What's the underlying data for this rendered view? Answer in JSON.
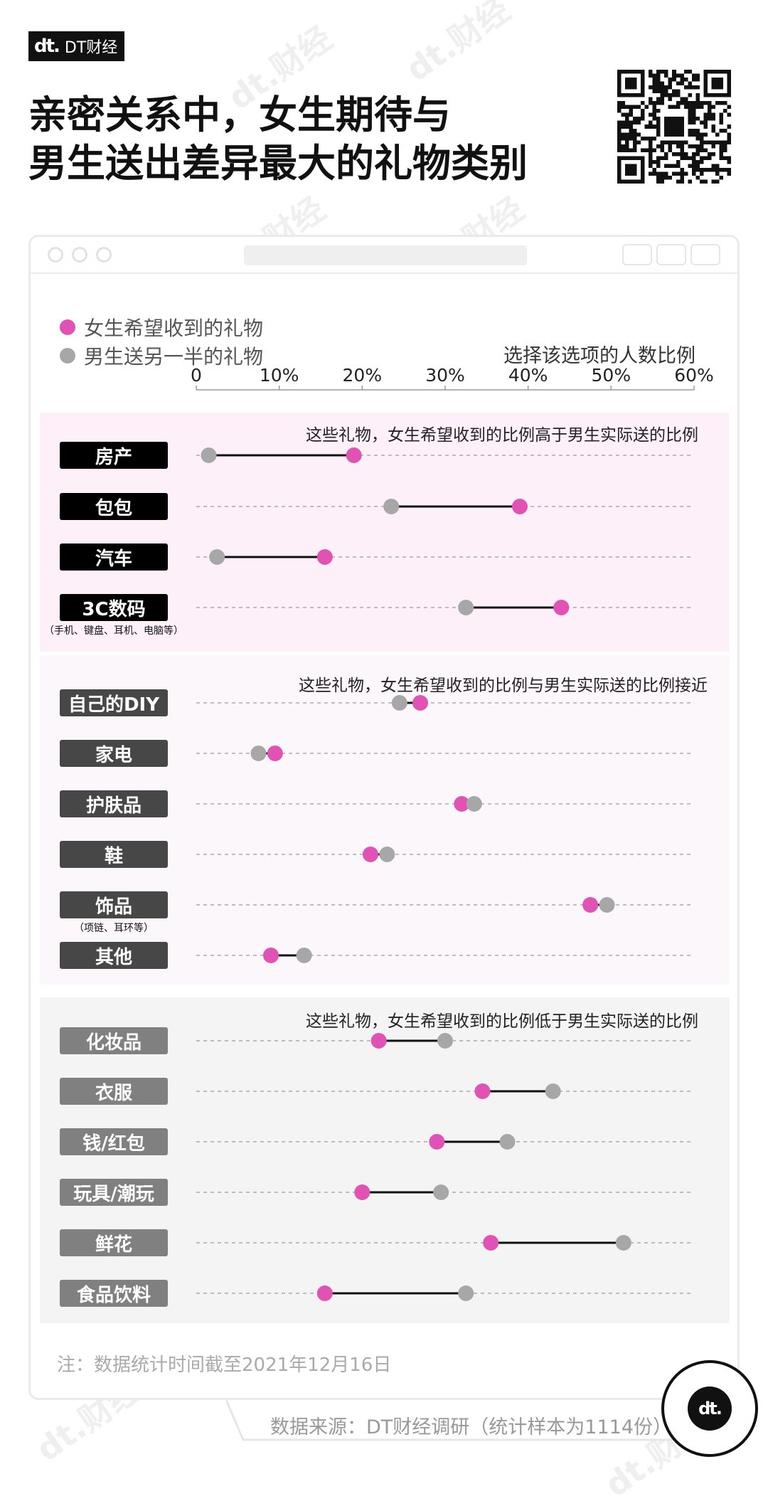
{
  "brand": {
    "logo": "dt.",
    "name": "DT财经"
  },
  "title": {
    "line1": "亲密关系中，女生期待与",
    "line2": "男生送出差异最大的礼物类别"
  },
  "legend": {
    "female": {
      "label": "女生希望收到的礼物",
      "color": "#e052b4"
    },
    "male": {
      "label": "男生送另一半的礼物",
      "color": "#a7a7a7"
    }
  },
  "axis_title": "选择该选项的人数比例",
  "note": "注：数据统计时间截至2021年12月16日",
  "source": "数据来源：DT财经调研（统计样本为1114份）",
  "watermark": "dt.财经",
  "badge_logo": "dt.",
  "groups": [
    {
      "title": "这些礼物，女生希望收到的比例高于男生实际送的比例",
      "bg": "#fdf0f8",
      "label_bg": "#000000"
    },
    {
      "title": "这些礼物，女生希望收到的比例与男生实际送的比例接近",
      "bg": "#fcf7fb",
      "label_bg": "#474747"
    },
    {
      "title": "这些礼物，女生希望收到的比例低于男生实际送的比例",
      "bg": "#f4f4f4",
      "label_bg": "#808080"
    }
  ],
  "chart_data": {
    "type": "dumbbell",
    "xlabel": "选择该选项的人数比例",
    "xlim": [
      0,
      60
    ],
    "xticks": [
      "0",
      "10%",
      "20%",
      "30%",
      "40%",
      "50%",
      "60%"
    ],
    "series": [
      {
        "name": "女生希望收到的礼物",
        "color": "#e052b4"
      },
      {
        "name": "男生送另一半的礼物",
        "color": "#a7a7a7"
      }
    ],
    "rows": [
      {
        "group": 0,
        "label": "房产",
        "female": 19,
        "male": 1.5
      },
      {
        "group": 0,
        "label": "包包",
        "female": 39,
        "male": 23.5
      },
      {
        "group": 0,
        "label": "汽车",
        "female": 15.5,
        "male": 2.5
      },
      {
        "group": 0,
        "label": "3C数码",
        "sublabel": "（手机、键盘、耳机、电脑等）",
        "female": 44,
        "male": 32.5
      },
      {
        "group": 1,
        "label": "自己的DIY",
        "female": 27,
        "male": 24.5
      },
      {
        "group": 1,
        "label": "家电",
        "female": 9.5,
        "male": 7.5
      },
      {
        "group": 1,
        "label": "护肤品",
        "female": 32,
        "male": 33.5
      },
      {
        "group": 1,
        "label": "鞋",
        "female": 21,
        "male": 23
      },
      {
        "group": 1,
        "label": "饰品",
        "sublabel": "（项链、耳环等）",
        "female": 47.5,
        "male": 49.5
      },
      {
        "group": 1,
        "label": "其他",
        "female": 9,
        "male": 13
      },
      {
        "group": 2,
        "label": "化妆品",
        "female": 22,
        "male": 30
      },
      {
        "group": 2,
        "label": "衣服",
        "female": 34.5,
        "male": 43
      },
      {
        "group": 2,
        "label": "钱/红包",
        "female": 29,
        "male": 37.5
      },
      {
        "group": 2,
        "label": "玩具/潮玩",
        "female": 20,
        "male": 29.5
      },
      {
        "group": 2,
        "label": "鲜花",
        "female": 35.5,
        "male": 51.5
      },
      {
        "group": 2,
        "label": "食品饮料",
        "female": 15.5,
        "male": 32.5
      }
    ]
  }
}
